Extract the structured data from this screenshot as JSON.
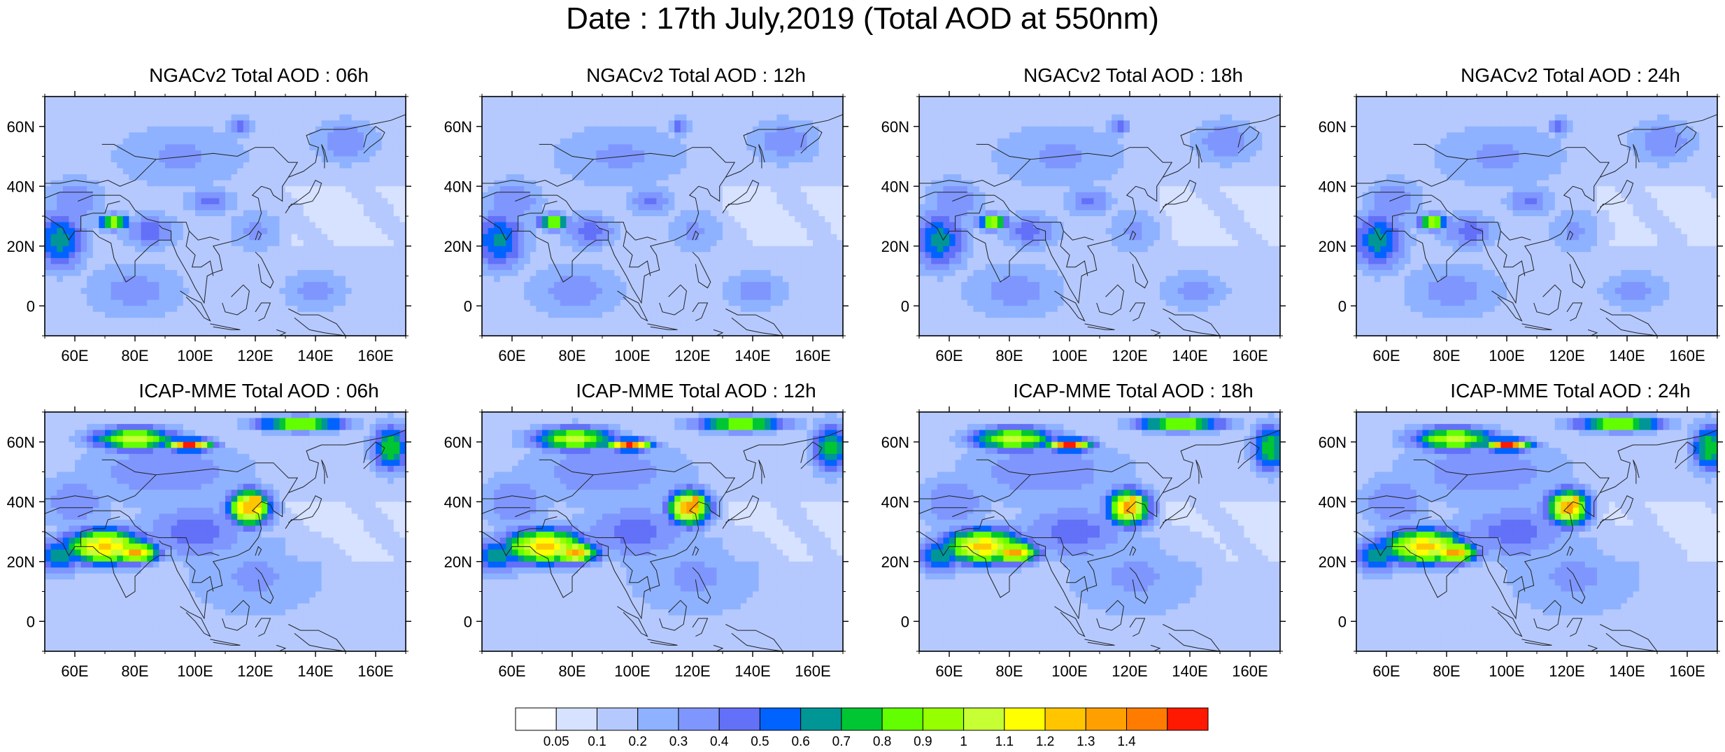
{
  "title": "Date : 17th July,2019 (Total AOD at 550nm)",
  "lat_labels": [
    "60N",
    "40N",
    "20N",
    "0"
  ],
  "lon_labels": [
    "60E",
    "80E",
    "100E",
    "120E",
    "140E",
    "160E"
  ],
  "panels": [
    {
      "title": "NGACv2 Total AOD : 06h",
      "model": "NGACv2",
      "hour": "06h"
    },
    {
      "title": "NGACv2 Total AOD : 12h",
      "model": "NGACv2",
      "hour": "12h"
    },
    {
      "title": "NGACv2 Total AOD : 18h",
      "model": "NGACv2",
      "hour": "18h"
    },
    {
      "title": "NGACv2 Total AOD : 24h",
      "model": "NGACv2",
      "hour": "24h"
    },
    {
      "title": "ICAP-MME Total AOD : 06h",
      "model": "ICAP-MME",
      "hour": "06h"
    },
    {
      "title": "ICAP-MME Total AOD : 12h",
      "model": "ICAP-MME",
      "hour": "12h"
    },
    {
      "title": "ICAP-MME Total AOD : 18h",
      "model": "ICAP-MME",
      "hour": "18h"
    },
    {
      "title": "ICAP-MME Total AOD : 24h",
      "model": "ICAP-MME",
      "hour": "24h"
    }
  ],
  "colorbar": {
    "labels": [
      "0.05",
      "0.1",
      "0.2",
      "0.3",
      "0.4",
      "0.5",
      "0.6",
      "0.7",
      "0.8",
      "0.9",
      "1",
      "1.1",
      "1.2",
      "1.3",
      "1.4"
    ],
    "colors": [
      "#ffffff",
      "#d6e2ff",
      "#b5c9ff",
      "#8eb2ff",
      "#7f96ff",
      "#6370f8",
      "#0063ff",
      "#009696",
      "#00c633",
      "#63ff00",
      "#96ff00",
      "#c6ff33",
      "#ffff00",
      "#ffc600",
      "#ffa000",
      "#ff7c00",
      "#ff1900"
    ]
  },
  "map_extent": {
    "lon": [
      50,
      170
    ],
    "lat": [
      -10,
      70
    ]
  }
}
